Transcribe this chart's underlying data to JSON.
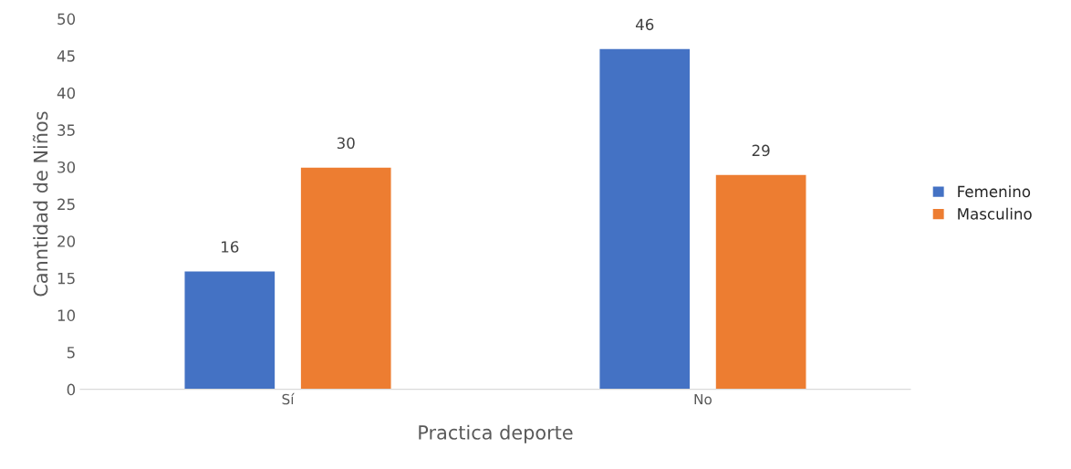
{
  "chart_data": {
    "type": "bar",
    "xlabel": "Practica deporte",
    "ylabel": "Canntidad de Niños",
    "categories": [
      "Sí",
      "No"
    ],
    "series": [
      {
        "name": "Femenino",
        "color": "#4472c4",
        "values": [
          16,
          46
        ]
      },
      {
        "name": "Masculino",
        "color": "#ed7d31",
        "values": [
          30,
          29
        ]
      }
    ],
    "ylim": [
      0,
      50
    ],
    "yticks": [
      0,
      5,
      10,
      15,
      20,
      25,
      30,
      35,
      40,
      45,
      50
    ],
    "grid": false,
    "legend": "right",
    "data_labels": true
  }
}
